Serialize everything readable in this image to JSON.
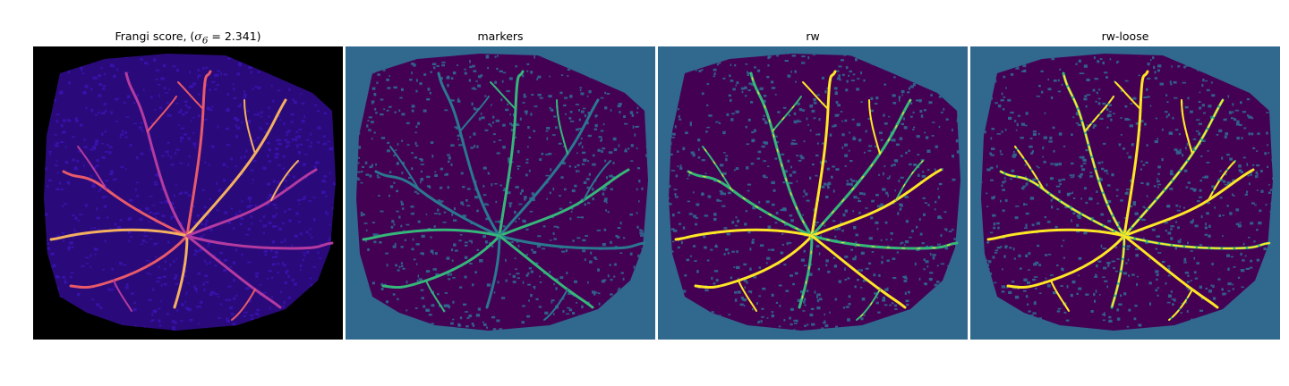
{
  "figure": {
    "panels": [
      {
        "id": "frangi",
        "title_prefix": "Frangi score, (",
        "title_sigma": "σ",
        "title_sub": "6",
        "title_suffix": " = 2.341)",
        "colormap": "magma",
        "background": "#000000",
        "tissue_color": "#2a0a7a",
        "vessel_colors": [
          "#b43aa0",
          "#e85a6a",
          "#f4b060"
        ]
      },
      {
        "id": "markers",
        "title": "markers",
        "colormap": "viridis",
        "background": "#31688e",
        "tissue_color": "#440154",
        "vessel_colors": [
          "#2a788e",
          "#35b779"
        ]
      },
      {
        "id": "rw",
        "title": "rw",
        "colormap": "viridis",
        "background": "#31688e",
        "tissue_color": "#440154",
        "vessel_colors": [
          "#35b779",
          "#fde725"
        ]
      },
      {
        "id": "rw-loose",
        "title": "rw-loose",
        "colormap": "viridis",
        "background": "#31688e",
        "tissue_color": "#440154",
        "vessel_colors": [
          "#35b779",
          "#fde725"
        ]
      }
    ]
  }
}
